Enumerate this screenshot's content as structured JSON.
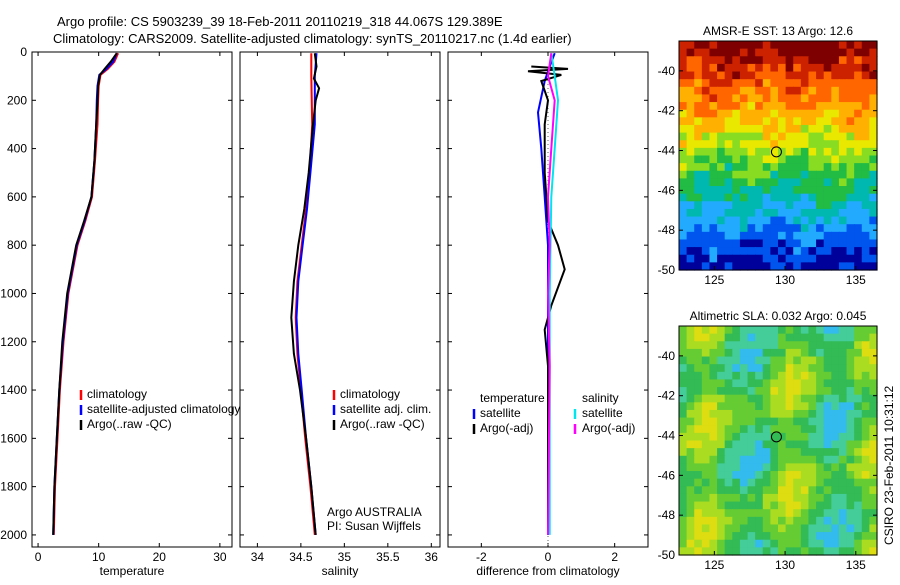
{
  "header": {
    "line1": "Argo profile: CS 5903239_39 18-Feb-2011 20110219_318 44.067S 129.389E",
    "line2": "Climatology: CARS2009. Satellite-adjusted climatology: synTS_20110217.nc (1.4d earlier)"
  },
  "side_label": "CSIRO 23-Feb-2011 10:31:12",
  "chart_data": [
    {
      "id": "temperature-panel",
      "type": "line",
      "xlabel": "temperature",
      "ylabel": "",
      "xlim": [
        -1,
        32
      ],
      "ylim": [
        2050,
        0
      ],
      "xticks": [
        "0",
        "10",
        "20",
        "30"
      ],
      "xtick_values": [
        0,
        10,
        20,
        30
      ],
      "yticks": [
        "0",
        "200",
        "400",
        "600",
        "800",
        "1000",
        "1200",
        "1400",
        "1600",
        "1800",
        "2000"
      ],
      "ytick_values": [
        0,
        200,
        400,
        600,
        800,
        1000,
        1200,
        1400,
        1600,
        1800,
        2000
      ],
      "legend": [
        "climatology",
        "satellite-adjusted climatology",
        "Argo(..raw -QC)"
      ],
      "series": [
        {
          "name": "climatology",
          "color": "#ff0000",
          "points": [
            [
              13.2,
              5
            ],
            [
              12.6,
              40
            ],
            [
              11.5,
              70
            ],
            [
              10.3,
              95
            ],
            [
              10.0,
              140
            ],
            [
              9.9,
              200
            ],
            [
              9.8,
              300
            ],
            [
              9.4,
              450
            ],
            [
              8.9,
              600
            ],
            [
              7.8,
              700
            ],
            [
              6.5,
              800
            ],
            [
              5.0,
              1000
            ],
            [
              4.2,
              1200
            ],
            [
              3.6,
              1400
            ],
            [
              3.2,
              1600
            ],
            [
              2.8,
              1800
            ],
            [
              2.6,
              2000
            ]
          ]
        },
        {
          "name": "satellite-adjusted climatology",
          "color": "#0000ff",
          "points": [
            [
              13.0,
              5
            ],
            [
              12.4,
              40
            ],
            [
              11.3,
              70
            ],
            [
              10.1,
              95
            ],
            [
              9.8,
              140
            ],
            [
              9.7,
              200
            ],
            [
              9.6,
              300
            ],
            [
              9.3,
              450
            ],
            [
              8.8,
              600
            ],
            [
              7.7,
              700
            ],
            [
              6.4,
              800
            ],
            [
              4.9,
              1000
            ],
            [
              4.1,
              1200
            ],
            [
              3.5,
              1400
            ],
            [
              3.1,
              1600
            ],
            [
              2.7,
              1800
            ],
            [
              2.5,
              2000
            ]
          ]
        },
        {
          "name": "Argo(..raw -QC)",
          "color": "#000000",
          "points": [
            [
              13.0,
              5
            ],
            [
              12.0,
              40
            ],
            [
              11.0,
              70
            ],
            [
              10.2,
              95
            ],
            [
              9.9,
              140
            ],
            [
              9.8,
              200
            ],
            [
              9.6,
              300
            ],
            [
              9.3,
              450
            ],
            [
              8.8,
              600
            ],
            [
              7.6,
              700
            ],
            [
              6.3,
              800
            ],
            [
              4.8,
              1000
            ],
            [
              4.0,
              1200
            ],
            [
              3.5,
              1400
            ],
            [
              3.1,
              1600
            ],
            [
              2.7,
              1800
            ],
            [
              2.5,
              2000
            ]
          ]
        }
      ]
    },
    {
      "id": "salinity-panel",
      "type": "line",
      "xlabel": "salinity",
      "ylabel": "",
      "xlim": [
        33.8,
        36.1
      ],
      "ylim": [
        2050,
        0
      ],
      "xticks": [
        "34",
        "34.5",
        "35",
        "35.5",
        "36"
      ],
      "xtick_values": [
        34,
        34.5,
        35,
        35.5,
        36
      ],
      "yticks": [],
      "legend": [
        "climatology",
        "satellite adj. clim.",
        "Argo(..raw -QC)"
      ],
      "annotation": [
        "Argo AUSTRALIA",
        "PI: Susan Wijffels"
      ],
      "series": [
        {
          "name": "climatology",
          "color": "#ff0000",
          "points": [
            [
              34.62,
              5
            ],
            [
              34.62,
              100
            ],
            [
              34.63,
              300
            ],
            [
              34.6,
              500
            ],
            [
              34.56,
              650
            ],
            [
              34.51,
              800
            ],
            [
              34.46,
              950
            ],
            [
              34.44,
              1100
            ],
            [
              34.46,
              1250
            ],
            [
              34.5,
              1400
            ],
            [
              34.55,
              1600
            ],
            [
              34.61,
              1800
            ],
            [
              34.66,
              2000
            ]
          ]
        },
        {
          "name": "satellite adj. clim.",
          "color": "#0000ff",
          "points": [
            [
              34.68,
              5
            ],
            [
              34.66,
              100
            ],
            [
              34.66,
              300
            ],
            [
              34.61,
              500
            ],
            [
              34.57,
              650
            ],
            [
              34.52,
              800
            ],
            [
              34.47,
              950
            ],
            [
              34.45,
              1100
            ],
            [
              34.47,
              1250
            ],
            [
              34.51,
              1400
            ],
            [
              34.56,
              1600
            ],
            [
              34.62,
              1800
            ],
            [
              34.67,
              2000
            ]
          ]
        },
        {
          "name": "Argo(..raw -QC)",
          "color": "#000000",
          "points": [
            [
              34.66,
              5
            ],
            [
              34.68,
              60
            ],
            [
              34.65,
              110
            ],
            [
              34.71,
              150
            ],
            [
              34.67,
              200
            ],
            [
              34.64,
              300
            ],
            [
              34.59,
              500
            ],
            [
              34.54,
              650
            ],
            [
              34.47,
              800
            ],
            [
              34.42,
              950
            ],
            [
              34.39,
              1100
            ],
            [
              34.42,
              1250
            ],
            [
              34.49,
              1400
            ],
            [
              34.56,
              1600
            ],
            [
              34.62,
              1800
            ],
            [
              34.67,
              2000
            ]
          ]
        }
      ]
    },
    {
      "id": "difference-panel",
      "type": "line",
      "xlabel": "difference from climatology",
      "ylabel": "",
      "xlim": [
        -3,
        3
      ],
      "ylim": [
        2050,
        0
      ],
      "xticks": [
        "-2",
        "0",
        "2"
      ],
      "xtick_values": [
        -2,
        0,
        2
      ],
      "yticks": [],
      "legend_temperature": {
        "heading": "temperature",
        "items": [
          "satellite",
          "Argo(-adj)"
        ]
      },
      "legend_salinity": {
        "heading": "salinity",
        "items": [
          "satellite",
          "Argo(-adj)"
        ]
      },
      "series": [
        {
          "name": "temperature satellite",
          "color": "#0000ff",
          "points": [
            [
              0.2,
              5
            ],
            [
              0.05,
              60
            ],
            [
              -0.1,
              120
            ],
            [
              -0.3,
              250
            ],
            [
              -0.2,
              400
            ],
            [
              -0.1,
              600
            ],
            [
              0.0,
              800
            ],
            [
              0.0,
              1000
            ],
            [
              0.0,
              1200
            ],
            [
              0.0,
              1500
            ],
            [
              0.0,
              2000
            ]
          ]
        },
        {
          "name": "temperature Argo(-adj)",
          "color": "#000000",
          "points": [
            [
              -0.5,
              60
            ],
            [
              0.6,
              70
            ],
            [
              -0.6,
              80
            ],
            [
              0.4,
              95
            ],
            [
              -0.2,
              120
            ],
            [
              0.0,
              200
            ],
            [
              -0.1,
              300
            ],
            [
              -0.1,
              500
            ],
            [
              0.0,
              700
            ],
            [
              0.3,
              800
            ],
            [
              0.5,
              900
            ],
            [
              0.1,
              1050
            ],
            [
              -0.1,
              1150
            ],
            [
              0.0,
              1300
            ],
            [
              0.0,
              2000
            ]
          ]
        },
        {
          "name": "salinity satellite",
          "color": "#00e5ee",
          "points": [
            [
              0.1,
              5
            ],
            [
              0.2,
              100
            ],
            [
              0.3,
              200
            ],
            [
              0.2,
              400
            ],
            [
              0.1,
              600
            ],
            [
              0.05,
              1000
            ],
            [
              0.05,
              1500
            ],
            [
              0.05,
              2000
            ]
          ]
        },
        {
          "name": "salinity Argo(-adj)",
          "color": "#ff00ff",
          "points": [
            [
              0.1,
              5
            ],
            [
              0.0,
              100
            ],
            [
              0.2,
              200
            ],
            [
              0.1,
              400
            ],
            [
              0.0,
              600
            ],
            [
              0.05,
              800
            ],
            [
              0.0,
              1000
            ],
            [
              0.05,
              1300
            ],
            [
              0.0,
              2000
            ]
          ]
        }
      ]
    },
    {
      "id": "sst-map",
      "type": "heatmap",
      "title": "AMSR-E SST: 13 Argo: 12.6",
      "xlim": [
        122.5,
        136.5
      ],
      "ylim": [
        -50,
        -38.5
      ],
      "xticks": [
        "125",
        "130",
        "135"
      ],
      "xtick_values": [
        125,
        130,
        135
      ],
      "yticks": [
        "-40",
        "-42",
        "-44",
        "-46",
        "-48",
        "-50"
      ],
      "ytick_values": [
        -40,
        -42,
        -44,
        -46,
        -48,
        -50
      ],
      "marker": {
        "lon": 129.389,
        "lat": -44.067
      },
      "colorband_note": "warm at north, cold at south",
      "color_stops": [
        "#7f0000",
        "#cc2200",
        "#ff6600",
        "#ffb000",
        "#e8e800",
        "#88dd22",
        "#22bb44",
        "#00b8b0",
        "#22aaff",
        "#0055ee",
        "#00009a"
      ]
    },
    {
      "id": "sla-map",
      "type": "heatmap",
      "title": "Altimetric SLA: 0.032 Argo: 0.045",
      "xlim": [
        122.5,
        136.5
      ],
      "ylim": [
        -50,
        -38.5
      ],
      "xticks": [
        "125",
        "130",
        "135"
      ],
      "xtick_values": [
        125,
        130,
        135
      ],
      "yticks": [
        "-40",
        "-42",
        "-44",
        "-46",
        "-48",
        "-50"
      ],
      "ytick_values": [
        -40,
        -42,
        -44,
        -46,
        -48,
        -50
      ],
      "marker": {
        "lon": 129.389,
        "lat": -44.067
      },
      "color_stops": [
        "#33bbee",
        "#44cc99",
        "#33bb55",
        "#66cc33",
        "#aadd22",
        "#dddd11"
      ]
    }
  ]
}
